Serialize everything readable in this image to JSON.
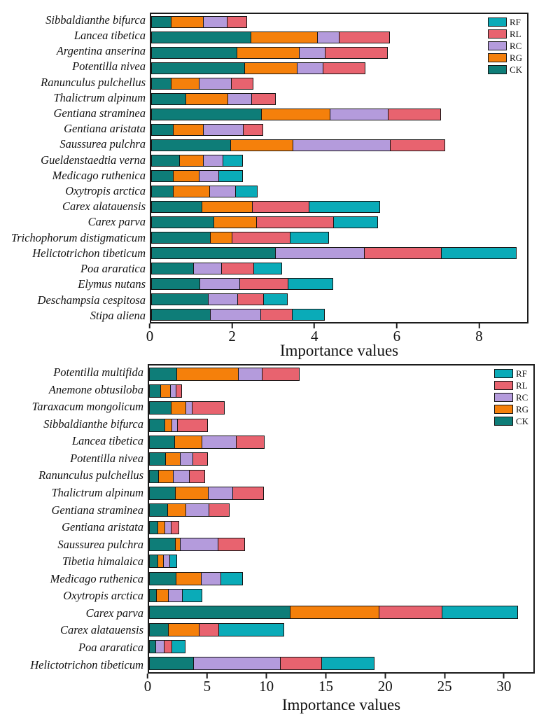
{
  "figure": {
    "background": "#ffffff"
  },
  "chart_data": [
    {
      "type": "bar",
      "subtype": "horizontal-stacked",
      "xlabel": "Importance values",
      "xlim": [
        0,
        9.2
      ],
      "xticks": [
        0,
        2,
        4,
        6,
        8
      ],
      "grid": false,
      "legend_position": "top-right-inside",
      "legend": [
        "RF",
        "RL",
        "RC",
        "RG",
        "CK"
      ],
      "colors": {
        "RF": "#0aabb8",
        "RL": "#e8636f",
        "RC": "#b49bdc",
        "RG": "#f5800b",
        "CK": "#0e7d78"
      },
      "categories": [
        "Sibbaldianthe bifurca",
        "Lancea tibetica",
        "Argentina anserina",
        "Potentilla nivea",
        "Ranunculus pulchellus",
        "Thalictrum alpinum",
        "Gentiana straminea",
        "Gentiana aristata",
        "Saussurea pulchra",
        "Gueldenstaedtia verna",
        "Medicago ruthenica",
        "Oxytropis arctica",
        "Carex alatauensis",
        "Carex parva",
        "Trichophorum distigmaticum",
        "Helictotrichon tibeticum",
        "Poa araratica",
        "Elymus nutans",
        "Deschampsia cespitosa",
        "Stipa aliena"
      ],
      "series": [
        {
          "name": "CK",
          "values": [
            0.5,
            2.45,
            2.1,
            2.3,
            0.5,
            0.85,
            2.7,
            0.55,
            1.95,
            0.7,
            0.55,
            0.55,
            1.25,
            1.55,
            1.45,
            3.05,
            1.05,
            1.2,
            1.4,
            1.45
          ]
        },
        {
          "name": "RG",
          "values": [
            0.8,
            1.65,
            1.55,
            1.3,
            0.7,
            1.05,
            1.7,
            0.75,
            1.55,
            0.6,
            0.65,
            0.9,
            1.25,
            1.05,
            0.55,
            0,
            0,
            0,
            0,
            0
          ]
        },
        {
          "name": "RC",
          "values": [
            0.6,
            0.55,
            0.65,
            0.65,
            0.8,
            0.6,
            1.45,
            1.0,
            2.4,
            0.5,
            0.5,
            0.65,
            0,
            0,
            0,
            2.2,
            0.7,
            1.0,
            0.75,
            1.25
          ]
        },
        {
          "name": "RL",
          "values": [
            0.5,
            1.25,
            1.55,
            1.05,
            0.55,
            0.6,
            1.3,
            0.5,
            1.35,
            0,
            0,
            0,
            1.4,
            1.9,
            1.45,
            1.9,
            0.8,
            1.2,
            0.65,
            0.8
          ]
        },
        {
          "name": "RF",
          "values": [
            0,
            0,
            0,
            0,
            0,
            0,
            0,
            0,
            0,
            0.5,
            0.6,
            0.55,
            1.75,
            1.1,
            0.95,
            1.85,
            0.7,
            1.1,
            0.6,
            0.8
          ]
        }
      ]
    },
    {
      "type": "bar",
      "subtype": "horizontal-stacked",
      "xlabel": "Importance values",
      "xlim": [
        0,
        32.6
      ],
      "xticks": [
        0,
        5,
        10,
        15,
        20,
        25,
        30
      ],
      "grid": false,
      "legend_position": "top-right-inside",
      "legend": [
        "RF",
        "RL",
        "RC",
        "RG",
        "CK"
      ],
      "colors": {
        "RF": "#0aabb8",
        "RL": "#e8636f",
        "RC": "#b49bdc",
        "RG": "#f5800b",
        "CK": "#0e7d78"
      },
      "categories": [
        "Potentilla multifida",
        "Anemone obtusiloba",
        "Taraxacum mongolicum",
        "Sibbaldianthe bifurca",
        "Lancea tibetica",
        "Potentilla nivea",
        "Ranunculus pulchellus",
        "Thalictrum alpinum",
        "Gentiana straminea",
        "Gentiana aristata",
        "Saussurea pulchra",
        "Tibetia himalaica",
        "Medicago ruthenica",
        "Oxytropis arctica",
        "Carex parva",
        "Carex alatauensis",
        "Poa araratica",
        "Helictotrichon tibeticum"
      ],
      "series": [
        {
          "name": "CK",
          "values": [
            2.4,
            1.0,
            1.9,
            1.35,
            2.2,
            1.4,
            0.85,
            2.25,
            1.6,
            0.8,
            2.25,
            0.75,
            2.3,
            0.65,
            12.0,
            1.65,
            0.6,
            3.8
          ]
        },
        {
          "name": "RG",
          "values": [
            5.25,
            0.9,
            1.3,
            0.65,
            2.35,
            1.35,
            1.3,
            2.85,
            1.6,
            0.6,
            0.5,
            0.55,
            2.2,
            1.1,
            7.6,
            2.7,
            0,
            0
          ]
        },
        {
          "name": "RC",
          "values": [
            2.1,
            0.55,
            0.6,
            0.55,
            3.0,
            1.1,
            1.4,
            2.15,
            2.05,
            0.6,
            3.25,
            0.6,
            1.75,
            1.2,
            0,
            0,
            0.75,
            7.4
          ]
        },
        {
          "name": "RL",
          "values": [
            3.2,
            0.55,
            2.8,
            2.6,
            2.45,
            1.3,
            1.35,
            2.65,
            1.75,
            0.75,
            2.3,
            0,
            0,
            0,
            5.4,
            1.7,
            0.7,
            3.6
          ]
        },
        {
          "name": "RF",
          "values": [
            0,
            0,
            0,
            0,
            0,
            0,
            0,
            0,
            0,
            0,
            0,
            0.65,
            1.9,
            1.75,
            6.5,
            5.6,
            1.2,
            4.5
          ]
        }
      ]
    }
  ]
}
